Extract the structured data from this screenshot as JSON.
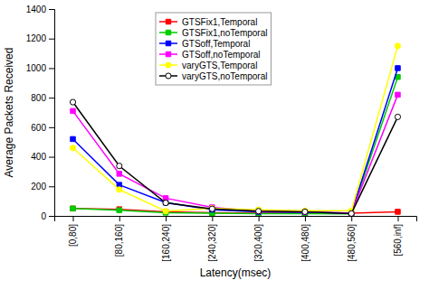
{
  "chart_data": {
    "type": "line",
    "xlabel": "Latency(msec)",
    "ylabel": "Average Packets Received",
    "categories": [
      "[0,80]",
      "[80,160]",
      "[160,240]",
      "[240,320]",
      "[320,400]",
      "[400,480]",
      "[480,560]",
      "[560,inf]"
    ],
    "series": [
      {
        "name": "GTSFix1,Temporal",
        "color": "#ff0000",
        "marker": "square",
        "values": [
          50,
          45,
          28,
          22,
          18,
          18,
          18,
          28
        ]
      },
      {
        "name": "GTSFix1,noTemporal",
        "color": "#00cc00",
        "marker": "square",
        "values": [
          50,
          38,
          22,
          18,
          15,
          15,
          14,
          940
        ]
      },
      {
        "name": "GTSoff,Temporal",
        "color": "#0000ff",
        "marker": "square",
        "values": [
          520,
          210,
          90,
          42,
          28,
          25,
          20,
          1000
        ]
      },
      {
        "name": "GTSoff,noTemporal",
        "color": "#ff00ff",
        "marker": "square",
        "values": [
          710,
          285,
          120,
          58,
          32,
          28,
          18,
          820
        ]
      },
      {
        "name": "varyGTS,Temporal",
        "color": "#ffff00",
        "marker": "circle",
        "values": [
          460,
          178,
          32,
          52,
          42,
          35,
          35,
          1150
        ]
      },
      {
        "name": "varyGTS,noTemporal",
        "color": "#000000",
        "marker": "circle",
        "values": [
          770,
          338,
          88,
          48,
          32,
          28,
          16,
          670
        ]
      }
    ],
    "ylim": [
      0,
      1400
    ],
    "yticks": [
      0,
      200,
      400,
      600,
      800,
      1000,
      1200,
      1400
    ],
    "grid": false,
    "legend": "top-left"
  }
}
